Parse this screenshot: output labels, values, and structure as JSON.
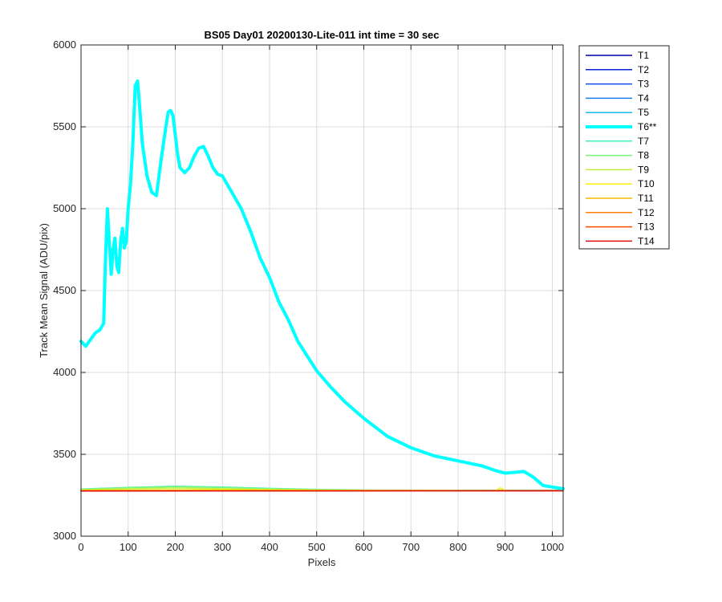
{
  "chart_data": {
    "type": "line",
    "title": "BS05 Day01 20200130-Lite-011 int time = 30 sec",
    "xlabel": "Pixels",
    "ylabel": "Track Mean Signal (ADU/pix)",
    "xlim": [
      0,
      1023
    ],
    "ylim": [
      3000,
      6000
    ],
    "xticks": [
      0,
      100,
      200,
      300,
      400,
      500,
      600,
      700,
      800,
      900,
      1000
    ],
    "yticks": [
      3000,
      3500,
      4000,
      4500,
      5000,
      5500,
      6000
    ],
    "grid": true,
    "legend_position": "outside-right-top",
    "series": [
      {
        "name": "T1",
        "color": "#0000aa",
        "width": 1.5,
        "x": [
          0,
          1023
        ],
        "y": [
          3278,
          3278
        ]
      },
      {
        "name": "T2",
        "color": "#0a1fd6",
        "width": 1.5,
        "x": [
          0,
          1023
        ],
        "y": [
          3278,
          3278
        ]
      },
      {
        "name": "T3",
        "color": "#0f4ee8",
        "width": 1.5,
        "x": [
          0,
          1023
        ],
        "y": [
          3279,
          3279
        ]
      },
      {
        "name": "T4",
        "color": "#1a7fe8",
        "width": 1.5,
        "x": [
          0,
          1023
        ],
        "y": [
          3279,
          3279
        ]
      },
      {
        "name": "T5",
        "color": "#19b8f0",
        "width": 1.5,
        "x": [
          0,
          1023
        ],
        "y": [
          3280,
          3280
        ]
      },
      {
        "name": "T6**",
        "color": "#00ffff",
        "width": 4,
        "x": [
          0,
          10,
          20,
          30,
          40,
          48,
          52,
          56,
          60,
          64,
          68,
          72,
          76,
          80,
          84,
          88,
          92,
          96,
          100,
          105,
          110,
          115,
          120,
          125,
          130,
          140,
          150,
          160,
          170,
          180,
          185,
          190,
          195,
          200,
          205,
          210,
          220,
          230,
          240,
          250,
          260,
          270,
          280,
          290,
          300,
          320,
          340,
          360,
          380,
          400,
          420,
          440,
          460,
          480,
          500,
          530,
          560,
          600,
          650,
          700,
          750,
          800,
          850,
          880,
          900,
          920,
          940,
          960,
          980,
          1000,
          1023
        ],
        "y": [
          4190,
          4160,
          4200,
          4240,
          4260,
          4300,
          4700,
          5000,
          4800,
          4600,
          4750,
          4820,
          4650,
          4610,
          4800,
          4880,
          4760,
          4800,
          5000,
          5150,
          5400,
          5750,
          5780,
          5600,
          5400,
          5200,
          5100,
          5080,
          5300,
          5500,
          5590,
          5600,
          5570,
          5450,
          5330,
          5250,
          5220,
          5250,
          5320,
          5370,
          5380,
          5320,
          5250,
          5210,
          5200,
          5100,
          5000,
          4860,
          4700,
          4580,
          4430,
          4320,
          4190,
          4100,
          4010,
          3910,
          3820,
          3720,
          3610,
          3540,
          3490,
          3460,
          3430,
          3400,
          3385,
          3390,
          3395,
          3360,
          3310,
          3300,
          3290
        ]
      },
      {
        "name": "T7",
        "color": "#40f0c0",
        "width": 1.5,
        "x": [
          0,
          100,
          200,
          300,
          400,
          500,
          600,
          800,
          1023
        ],
        "y": [
          3288,
          3298,
          3305,
          3300,
          3292,
          3286,
          3282,
          3280,
          3279
        ]
      },
      {
        "name": "T8",
        "color": "#7cf57c",
        "width": 1.5,
        "x": [
          0,
          100,
          200,
          300,
          400,
          500,
          600,
          800,
          1023
        ],
        "y": [
          3286,
          3296,
          3302,
          3297,
          3290,
          3284,
          3281,
          3279,
          3278
        ]
      },
      {
        "name": "T9",
        "color": "#bff040",
        "width": 1.5,
        "x": [
          0,
          100,
          200,
          300,
          400,
          500,
          600,
          800,
          1023
        ],
        "y": [
          3283,
          3290,
          3294,
          3290,
          3285,
          3282,
          3280,
          3278,
          3278
        ]
      },
      {
        "name": "T10",
        "color": "#ffee00",
        "width": 1.5,
        "x": [
          0,
          300,
          600,
          880,
          890,
          900,
          1023
        ],
        "y": [
          3281,
          3284,
          3280,
          3279,
          3295,
          3279,
          3279
        ]
      },
      {
        "name": "T11",
        "color": "#f5b800",
        "width": 1.5,
        "x": [
          0,
          1023
        ],
        "y": [
          3279,
          3278
        ]
      },
      {
        "name": "T12",
        "color": "#ff8000",
        "width": 1.5,
        "x": [
          0,
          1023
        ],
        "y": [
          3278,
          3278
        ]
      },
      {
        "name": "T13",
        "color": "#ff4a00",
        "width": 1.5,
        "x": [
          0,
          1023
        ],
        "y": [
          3277,
          3277
        ]
      },
      {
        "name": "T14",
        "color": "#e01010",
        "width": 1.5,
        "x": [
          0,
          1023
        ],
        "y": [
          3276,
          3277
        ]
      }
    ]
  }
}
